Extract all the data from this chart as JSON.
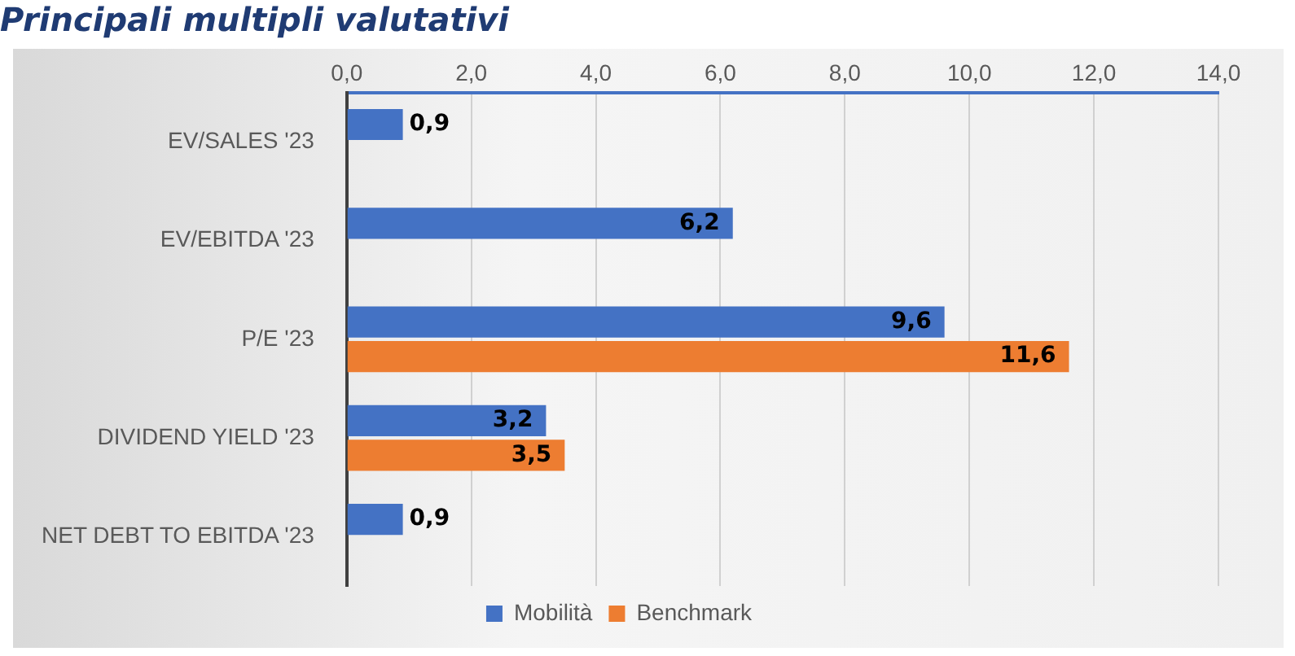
{
  "chart_data": {
    "type": "bar",
    "orientation": "horizontal",
    "title": "Principali multipli valutativi",
    "categories": [
      "EV/SALES '23",
      "EV/EBITDA '23",
      "P/E '23",
      "DIVIDEND YIELD '23",
      "NET DEBT TO EBITDA '23"
    ],
    "series": [
      {
        "name": "Mobilità",
        "color": "#4472c4",
        "values": [
          0.9,
          6.2,
          9.6,
          3.2,
          0.9
        ],
        "value_labels": [
          "0,9",
          "6,2",
          "9,6",
          "3,2",
          "0,9"
        ]
      },
      {
        "name": "Benchmark",
        "color": "#ed7d31",
        "values": [
          null,
          null,
          11.6,
          3.5,
          null
        ],
        "value_labels": [
          null,
          null,
          "11,6",
          "3,5",
          null
        ]
      }
    ],
    "xlim": [
      0,
      14
    ],
    "xticks": [
      {
        "value": 0,
        "label": "0,0"
      },
      {
        "value": 2,
        "label": "2,0"
      },
      {
        "value": 4,
        "label": "4,0"
      },
      {
        "value": 6,
        "label": "6,0"
      },
      {
        "value": 8,
        "label": "8,0"
      },
      {
        "value": 10,
        "label": "10,0"
      },
      {
        "value": 12,
        "label": "12,0"
      },
      {
        "value": 14,
        "label": "14,0"
      }
    ],
    "grid": "x",
    "legend": "bottom",
    "data_labels": true
  }
}
